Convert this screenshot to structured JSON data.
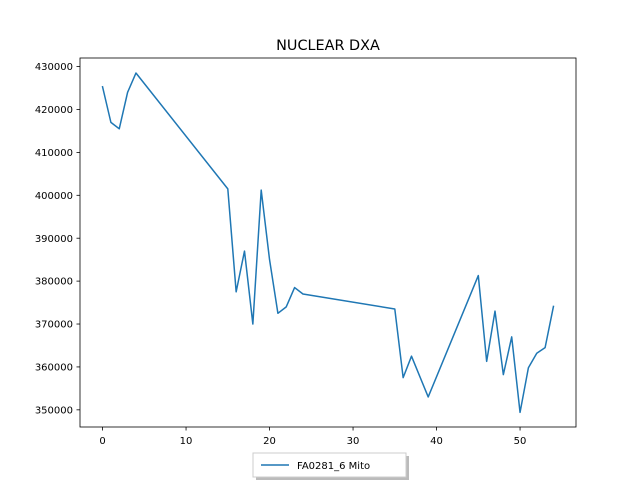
{
  "chart_data": {
    "type": "line",
    "title": "NUCLEAR DXA",
    "xlabel": "",
    "ylabel": "",
    "xlim": [
      -2.7,
      56.7
    ],
    "ylim": [
      346000,
      432000
    ],
    "x_ticks": [
      0,
      10,
      20,
      30,
      40,
      50
    ],
    "x_tick_labels": [
      "0",
      "10",
      "20",
      "30",
      "40",
      "50"
    ],
    "y_ticks": [
      350000,
      360000,
      370000,
      380000,
      390000,
      400000,
      410000,
      420000,
      430000
    ],
    "y_tick_labels": [
      "350000",
      "360000",
      "370000",
      "380000",
      "390000",
      "400000",
      "410000",
      "420000",
      "430000"
    ],
    "grid": false,
    "legend_position": "bottom-center",
    "series": [
      {
        "name": "FA0281_6 Mito",
        "color": "#1f77b4",
        "x": [
          0,
          1,
          2,
          3,
          4,
          15,
          16,
          17,
          18,
          19,
          20,
          21,
          22,
          23,
          24,
          35,
          36,
          37,
          39,
          45,
          46,
          47,
          48,
          49,
          50,
          51,
          52,
          53,
          54
        ],
        "y": [
          425300,
          417000,
          415500,
          424000,
          428500,
          401500,
          377500,
          387000,
          370000,
          401200,
          385000,
          372500,
          374000,
          378500,
          377000,
          373500,
          357500,
          362500,
          353000,
          381300,
          361300,
          373000,
          358200,
          367000,
          349400,
          359800,
          363200,
          364500,
          374100
        ]
      }
    ]
  }
}
